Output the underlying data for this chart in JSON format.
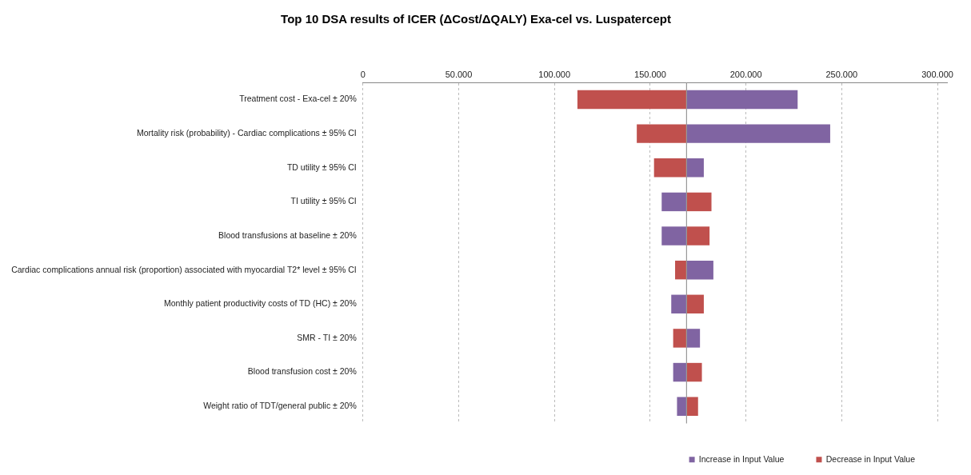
{
  "chart_data": {
    "type": "bar",
    "orientation": "horizontal",
    "title": "Top 10 DSA results of ICER (ΔCost/ΔQALY) Exa-cel vs. Luspatercept",
    "categories": [
      "Treatment cost - Exa-cel ± 20%",
      "Mortality risk (probability) - Cardiac complications ± 95% CI",
      "TD utility ± 95% CI",
      "TI utility ± 95% CI",
      "Blood transfusions at baseline ± 20%",
      "Cardiac complications annual risk (proportion) associated with myocardial T2* level ± 95% CI",
      "Monthly patient productivity costs of TD (HC) ± 20%",
      "SMR - TI ± 20%",
      "Blood transfusion cost ± 20%",
      "Weight ratio of TDT/general public ± 20%"
    ],
    "series": [
      {
        "name": "Increase in Input Value",
        "color": "#8064a2",
        "base": [
          169000,
          169000,
          169000,
          169000,
          169000,
          169000,
          169000,
          169000,
          169000,
          169000
        ],
        "values": [
          58000,
          75000,
          9000,
          -13000,
          -13000,
          14000,
          -8000,
          7000,
          -7000,
          -5000
        ]
      },
      {
        "name": "Decrease in Input Value",
        "color": "#c0504d",
        "base": [
          169000,
          169000,
          169000,
          169000,
          169000,
          169000,
          169000,
          169000,
          169000,
          169000
        ],
        "values": [
          -57000,
          -26000,
          -17000,
          13000,
          12000,
          -6000,
          9000,
          -7000,
          8000,
          6000
        ]
      }
    ],
    "xlim": [
      0,
      305000
    ],
    "xticks": [
      0,
      {
        "value": 50000,
        "label": "50.000"
      },
      {
        "value": 100000,
        "label": "100.000"
      },
      {
        "value": 150000,
        "label": "150.000"
      },
      {
        "value": 200000,
        "label": "200.000"
      },
      {
        "value": 250000,
        "label": "250.000"
      },
      {
        "value": 300000,
        "label": "300.000"
      }
    ],
    "ref_lines": [
      {
        "axis": "x",
        "value": 169000,
        "color": "#999999"
      }
    ],
    "grid": "x",
    "legend": "bottom right"
  }
}
